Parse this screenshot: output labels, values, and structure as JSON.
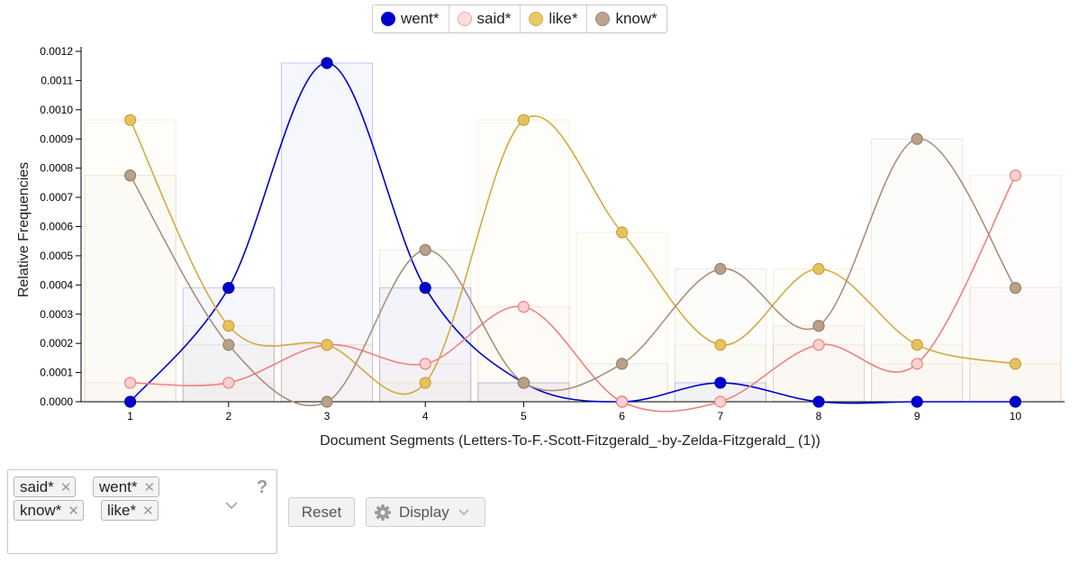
{
  "chart_data": {
    "type": "line",
    "title": "",
    "xlabel": "Document Segments (Letters-To-F.-Scott-Fitzgerald_-by-Zelda-Fitzgerald_ (1))",
    "ylabel": "Relative Frequencies",
    "categories": [
      "1",
      "2",
      "3",
      "4",
      "5",
      "6",
      "7",
      "8",
      "9",
      "10"
    ],
    "ylim": [
      0,
      0.0012
    ],
    "yticks": [
      "0.0000",
      "0.0001",
      "0.0002",
      "0.0003",
      "0.0004",
      "0.0005",
      "0.0006",
      "0.0007",
      "0.0008",
      "0.0009",
      "0.0010",
      "0.0011",
      "0.0012"
    ],
    "smooth": true,
    "background_bars": true,
    "legend_position": "top-center",
    "series": [
      {
        "name": "went*",
        "color": "#0000cc",
        "values": [
          0.0,
          0.00039,
          0.00116,
          0.00039,
          6.5e-05,
          0.0,
          6.5e-05,
          0.0,
          0.0,
          0.0
        ]
      },
      {
        "name": "said*",
        "color": "#f4a0a0",
        "values": [
          6.5e-05,
          6.5e-05,
          0.000195,
          0.00013,
          0.000325,
          0.0,
          0.0,
          0.000195,
          0.00013,
          0.000775
        ]
      },
      {
        "name": "like*",
        "color": "#e6c25e",
        "values": [
          0.000965,
          0.00026,
          0.000195,
          6.5e-05,
          0.000965,
          0.00058,
          0.000195,
          0.000455,
          0.000195,
          0.00013
        ]
      },
      {
        "name": "know*",
        "color": "#b8a08a",
        "values": [
          0.000775,
          0.000195,
          0.0,
          0.00052,
          6.5e-05,
          0.00013,
          0.000455,
          0.00026,
          0.0009,
          0.00039
        ]
      }
    ]
  },
  "terms": {
    "tags": [
      "said*",
      "went*",
      "know*",
      "like*"
    ],
    "remove_glyph": "✕",
    "help_label": "?"
  },
  "buttons": {
    "reset_label": "Reset",
    "display_label": "Display"
  }
}
